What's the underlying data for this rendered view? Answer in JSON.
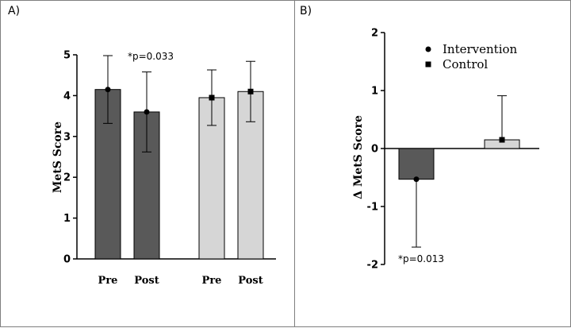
{
  "chart_data": [
    {
      "panel": "A)",
      "type": "bar",
      "ylabel": "MetS Score",
      "xlabel": "",
      "ylim": [
        0,
        5
      ],
      "yticks": [
        "0",
        "1",
        "2",
        "3",
        "4",
        "5"
      ],
      "categories": [
        "Pre",
        "Post",
        "Pre",
        "Post"
      ],
      "groups": [
        "Intervention",
        "Intervention",
        "Control",
        "Control"
      ],
      "values": [
        4.15,
        3.6,
        3.95,
        4.1
      ],
      "error": [
        0.83,
        0.98,
        0.68,
        0.74
      ],
      "annotation": "*p=0.033"
    },
    {
      "panel": "B)",
      "type": "bar",
      "ylabel": "Δ MetS Score",
      "xlabel": "",
      "ylim": [
        -2,
        2
      ],
      "yticks": [
        "2",
        "1",
        "0",
        "-1",
        "-2"
      ],
      "series": [
        {
          "name": "Intervention",
          "value": -0.53,
          "error_low": 1.17,
          "error_high": 0
        },
        {
          "name": "Control",
          "value": 0.15,
          "error_low": 0,
          "error_high": 0.76
        }
      ],
      "legend": [
        "Intervention",
        "Control"
      ],
      "annotation": "*p=0.013"
    }
  ],
  "colors": {
    "intervention": "#595959",
    "control": "#d6d6d6",
    "border": "#000000"
  }
}
